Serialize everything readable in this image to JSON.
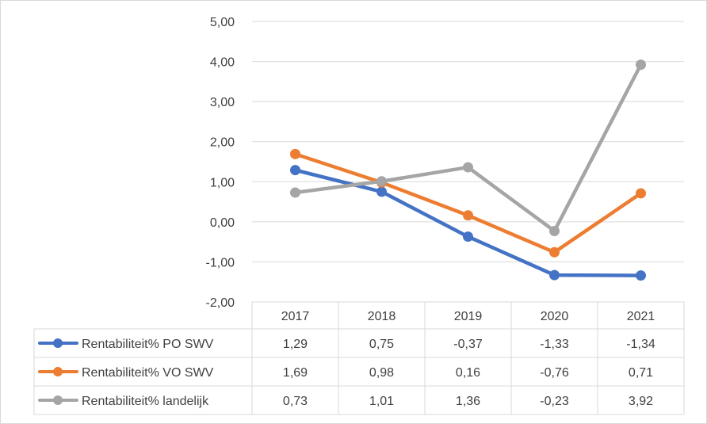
{
  "chart_data": {
    "type": "line",
    "categories": [
      "2017",
      "2018",
      "2019",
      "2020",
      "2021"
    ],
    "ylim": [
      -2,
      5
    ],
    "y_ticks": [
      "5,00",
      "4,00",
      "3,00",
      "2,00",
      "1,00",
      "0,00",
      "-1,00",
      "-2,00"
    ],
    "grid": true,
    "legend": "data-table-left",
    "series": [
      {
        "name": "Rentabiliteit% PO SWV",
        "color": "#4472c4",
        "values": [
          1.29,
          0.75,
          -0.37,
          -1.33,
          -1.34
        ],
        "labels": [
          "1,29",
          "0,75",
          "-0,37",
          "-1,33",
          "-1,34"
        ]
      },
      {
        "name": "Rentabiliteit% VO SWV",
        "color": "#ed7d31",
        "values": [
          1.69,
          0.98,
          0.16,
          -0.76,
          0.71
        ],
        "labels": [
          "1,69",
          "0,98",
          "0,16",
          "-0,76",
          "0,71"
        ]
      },
      {
        "name": "Rentabiliteit% landelijk",
        "color": "#a5a5a5",
        "values": [
          0.73,
          1.01,
          1.36,
          -0.23,
          3.92
        ],
        "labels": [
          "0,73",
          "1,01",
          "1,36",
          "-0,23",
          "3,92"
        ]
      }
    ]
  }
}
